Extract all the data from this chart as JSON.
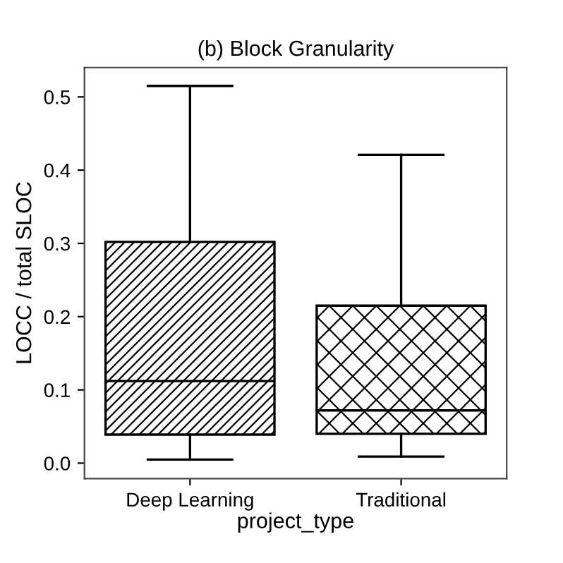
{
  "chart_data": {
    "type": "box",
    "title": "(b) Block Granularity",
    "xlabel": "project_type",
    "ylabel": "LOCC / total SLOC",
    "categories": [
      "Deep Learning",
      "Traditional"
    ],
    "boxes": [
      {
        "low": 0.005,
        "q1": 0.039,
        "median": 0.112,
        "q3": 0.302,
        "high": 0.515
      },
      {
        "low": 0.009,
        "q1": 0.04,
        "median": 0.072,
        "q3": 0.215,
        "high": 0.421
      }
    ],
    "ylim": [
      -0.021,
      0.54
    ],
    "yticks": [
      {
        "value": 0,
        "label": "0.0"
      },
      0.1,
      0.2,
      0.3,
      0.4,
      0.5
    ],
    "grid": false,
    "legend": false
  }
}
